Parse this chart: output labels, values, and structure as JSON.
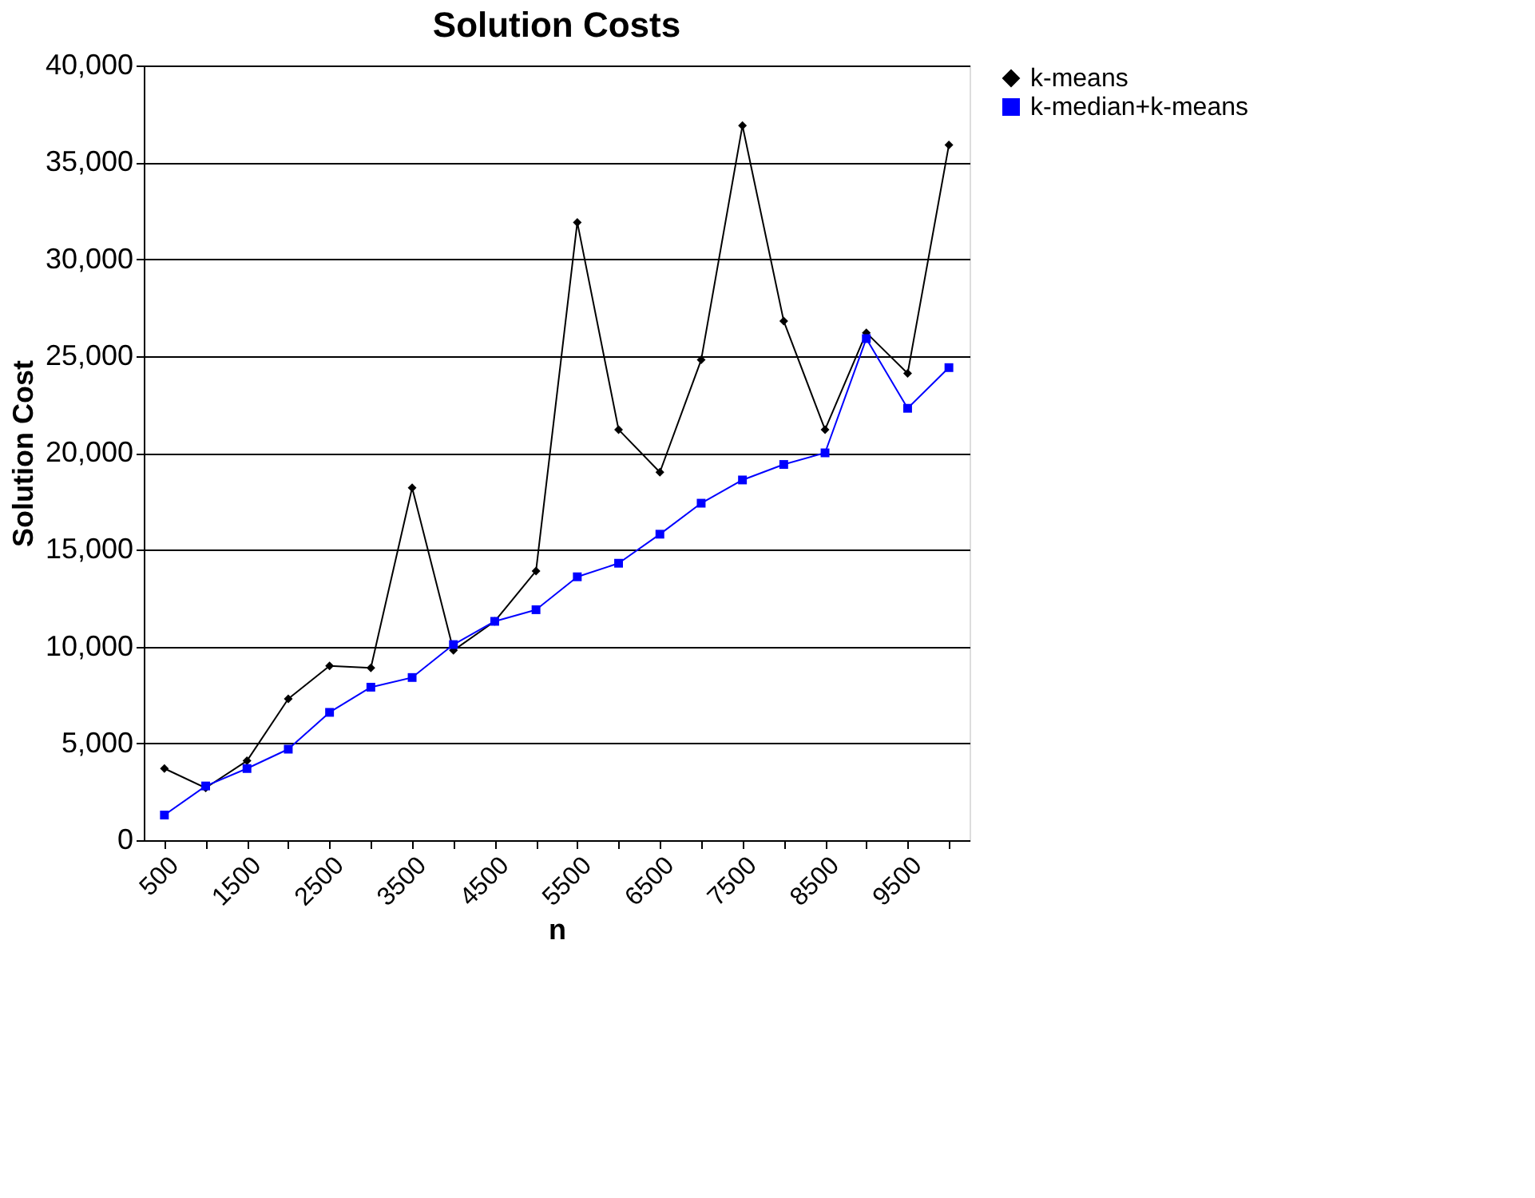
{
  "chart_data": {
    "type": "line",
    "title": "Solution Costs",
    "xlabel": "n",
    "ylabel": "Solution Cost",
    "categories": [
      "500",
      null,
      "1500",
      null,
      "2500",
      null,
      "3500",
      null,
      "4500",
      null,
      "5500",
      null,
      "6500",
      null,
      "7500",
      null,
      "8500",
      null,
      "9500",
      null
    ],
    "series": [
      {
        "name": "k-means",
        "color": "#000000",
        "marker": "diamond",
        "values": [
          3700,
          2700,
          4100,
          7300,
          9000,
          8900,
          18200,
          9800,
          11300,
          13900,
          31900,
          21200,
          19000,
          24800,
          36900,
          26800,
          21200,
          26200,
          24100,
          35900
        ]
      },
      {
        "name": "k-median+k-means",
        "color": "#0000ff",
        "marker": "square",
        "values": [
          1300,
          2800,
          3700,
          4700,
          6600,
          7900,
          8400,
          10100,
          11300,
          11900,
          13600,
          14300,
          15800,
          17400,
          18600,
          19400,
          20000,
          25900,
          22300,
          24400
        ]
      }
    ],
    "ylim": [
      0,
      40000
    ],
    "yticks": [
      {
        "value": 0,
        "label": "0"
      },
      {
        "value": 5000,
        "label": "5,000"
      },
      {
        "value": 10000,
        "label": "10,000"
      },
      {
        "value": 15000,
        "label": "15,000"
      },
      {
        "value": 20000,
        "label": "20,000"
      },
      {
        "value": 25000,
        "label": "25,000"
      },
      {
        "value": 30000,
        "label": "30,000"
      },
      {
        "value": 35000,
        "label": "35,000"
      },
      {
        "value": 40000,
        "label": "40,000"
      }
    ],
    "grid": "y",
    "legend": "right",
    "line_style": "solid"
  }
}
